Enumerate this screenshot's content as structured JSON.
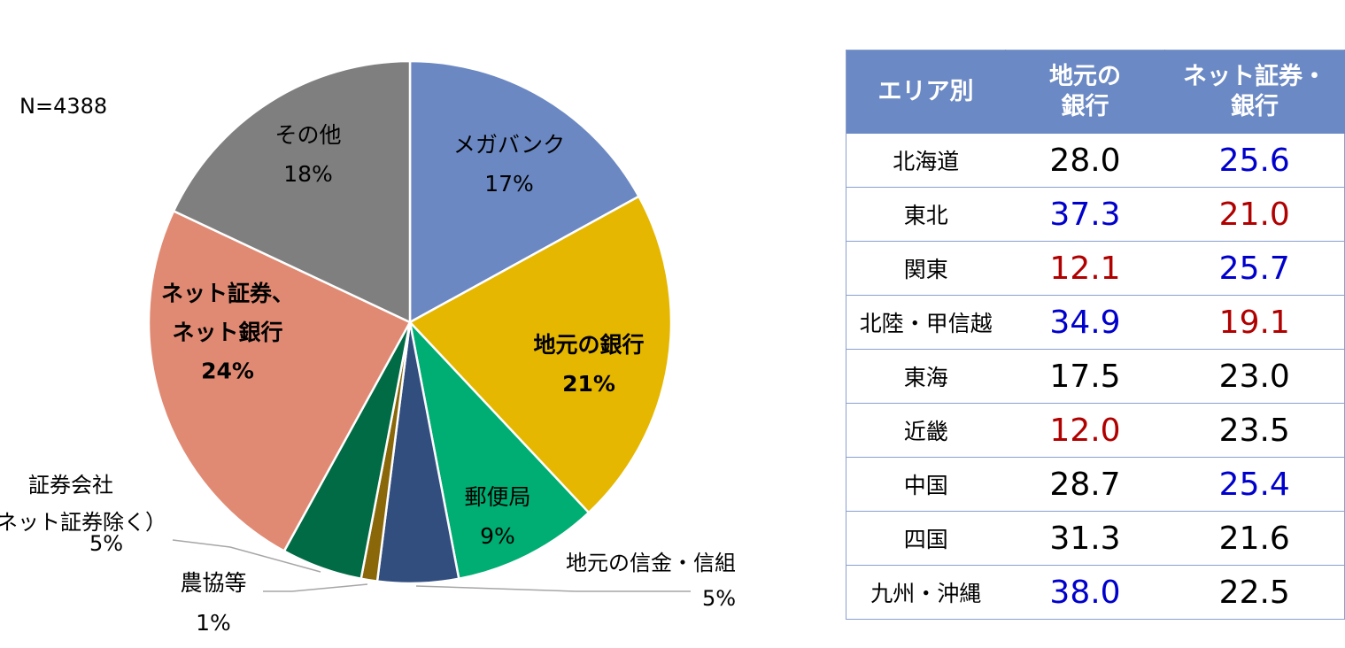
{
  "sample_size": "N=4388",
  "chart_data": {
    "type": "pie",
    "start_angle_deg": 0,
    "direction": "clockwise",
    "slices": [
      {
        "label": "メガバンク",
        "value": 17,
        "pct_label": "17%",
        "color": "#6b88c2",
        "bold": false
      },
      {
        "label": "地元の銀行",
        "value": 21,
        "pct_label": "21%",
        "color": "#e5b700",
        "bold": true
      },
      {
        "label": "郵便局",
        "value": 9,
        "pct_label": "9%",
        "color": "#00ad72",
        "bold": false
      },
      {
        "label": "地元の信金・信組",
        "value": 5,
        "pct_label": "5%",
        "color": "#324e7f",
        "bold": false
      },
      {
        "label": "農協等",
        "value": 1,
        "pct_label": "1%",
        "color": "#8a6708",
        "bold": false
      },
      {
        "label": "証券会社\n（ネット証券除く）",
        "value": 5,
        "pct_label": "5%",
        "color": "#006b45",
        "bold": false
      },
      {
        "label": "ネット証券、\nネット銀行",
        "value": 24,
        "pct_label": "24%",
        "color": "#e08a74",
        "bold": true
      },
      {
        "label": "その他",
        "value": 18,
        "pct_label": "18%",
        "color": "#7f7f7f",
        "bold": false
      }
    ]
  },
  "table": {
    "headers": [
      "エリア別",
      "地元の\n銀行",
      "ネット証券・\n銀行"
    ],
    "rows": [
      {
        "region": "北海道",
        "local_bank": "28.0",
        "local_color": "#000000",
        "net": "25.6",
        "net_color": "#0000cc"
      },
      {
        "region": "東北",
        "local_bank": "37.3",
        "local_color": "#0000cc",
        "net": "21.0",
        "net_color": "#b00000"
      },
      {
        "region": "関東",
        "local_bank": "12.1",
        "local_color": "#b00000",
        "net": "25.7",
        "net_color": "#0000cc"
      },
      {
        "region": "北陸・甲信越",
        "local_bank": "34.9",
        "local_color": "#0000cc",
        "net": "19.1",
        "net_color": "#b00000"
      },
      {
        "region": "東海",
        "local_bank": "17.5",
        "local_color": "#000000",
        "net": "23.0",
        "net_color": "#000000"
      },
      {
        "region": "近畿",
        "local_bank": "12.0",
        "local_color": "#b00000",
        "net": "23.5",
        "net_color": "#000000"
      },
      {
        "region": "中国",
        "local_bank": "28.7",
        "local_color": "#000000",
        "net": "25.4",
        "net_color": "#0000cc"
      },
      {
        "region": "四国",
        "local_bank": "31.3",
        "local_color": "#000000",
        "net": "21.6",
        "net_color": "#000000"
      },
      {
        "region": "九州・沖縄",
        "local_bank": "38.0",
        "local_color": "#0000cc",
        "net": "22.5",
        "net_color": "#000000"
      }
    ]
  }
}
